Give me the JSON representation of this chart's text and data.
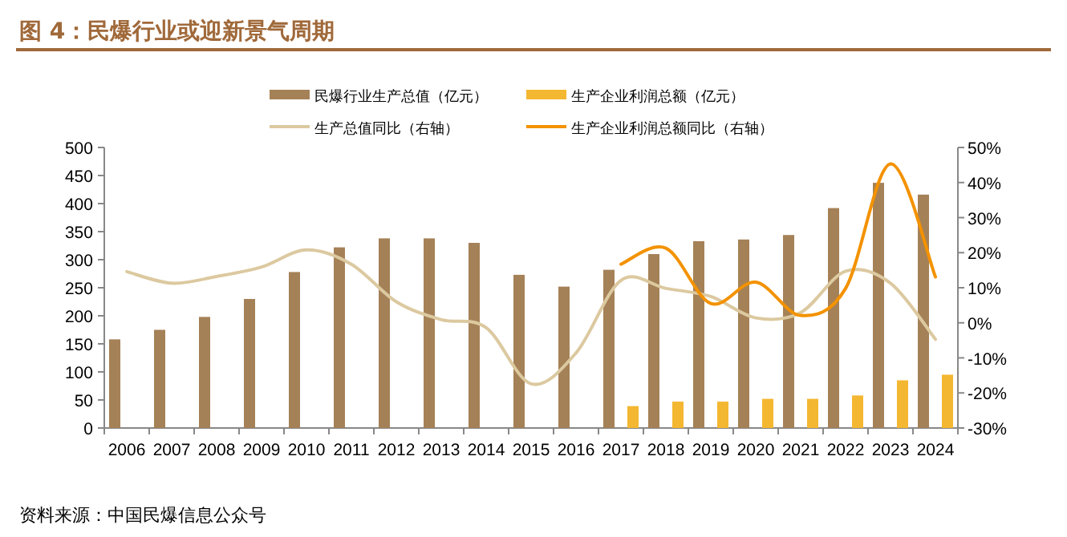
{
  "chart_data": {
    "type": "bar",
    "title": "图 4：民爆行业或迎新景气周期",
    "categories": [
      "2006",
      "2007",
      "2008",
      "2009",
      "2010",
      "2011",
      "2012",
      "2013",
      "2014",
      "2015",
      "2016",
      "2017",
      "2018",
      "2019",
      "2020",
      "2021",
      "2022",
      "2023",
      "2024"
    ],
    "series": [
      {
        "name": "民爆行业生产总值（亿元）",
        "color": "#a58157",
        "values": [
          158,
          175,
          198,
          230,
          278,
          322,
          338,
          338,
          330,
          273,
          252,
          282,
          310,
          333,
          336,
          344,
          392,
          437,
          416
        ]
      },
      {
        "name": "生产企业利润总额（亿元）",
        "color": "#f4b731",
        "values": [
          null,
          null,
          null,
          null,
          null,
          null,
          null,
          null,
          null,
          null,
          null,
          39,
          47,
          47,
          52,
          52,
          58,
          85,
          95
        ]
      },
      {
        "name": "生产总值同比（右轴）",
        "type": "line",
        "axis": "y2",
        "color": "#dcc9a0",
        "values": [
          14.6,
          11.3,
          13.2,
          15.9,
          20.8,
          16.7,
          6,
          0.9,
          -1.4,
          -17.4,
          -8.6,
          12.1,
          9.8,
          7.5,
          1.4,
          2.9,
          14.7,
          11.3,
          -4.7
        ]
      },
      {
        "name": "生产企业利润总额同比（右轴）",
        "type": "line",
        "axis": "y2",
        "color": "#f39200",
        "values": [
          null,
          null,
          null,
          null,
          null,
          null,
          null,
          null,
          null,
          null,
          null,
          16.7,
          21.3,
          5.5,
          11.6,
          2.1,
          9.8,
          45.3,
          13.1
        ]
      }
    ],
    "ylim": [
      0,
      500
    ],
    "yticks": [
      0,
      50,
      100,
      150,
      200,
      250,
      300,
      350,
      400,
      450,
      500
    ],
    "y2lim": [
      -30,
      50
    ],
    "y2ticks": [
      {
        "value": -30,
        "label": "-30%"
      },
      {
        "value": -20,
        "label": "-20%"
      },
      {
        "value": -10,
        "label": "-10%"
      },
      {
        "value": 0,
        "label": "0%"
      },
      {
        "value": 10,
        "label": "10%"
      },
      {
        "value": 20,
        "label": "20%"
      },
      {
        "value": 30,
        "label": "30%"
      },
      {
        "value": 40,
        "label": "40%"
      },
      {
        "value": 50,
        "label": "50%"
      }
    ],
    "legend": "top",
    "grid": false,
    "annotations": [
      "资料来源：中国民爆信息公众号"
    ]
  }
}
